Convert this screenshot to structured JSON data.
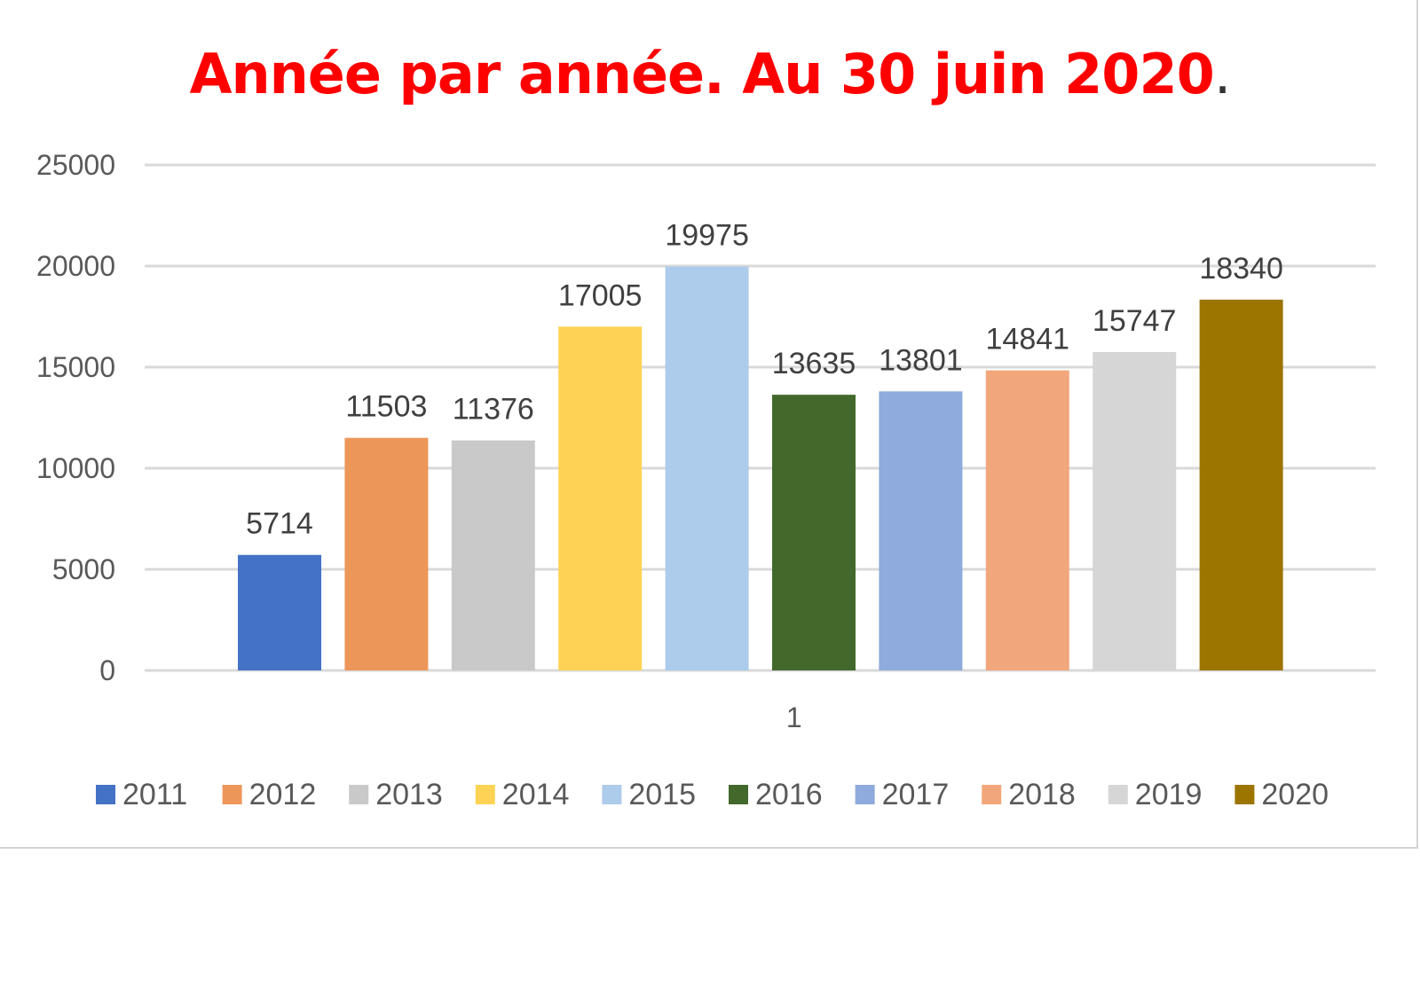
{
  "chart_data": {
    "type": "bar",
    "title": "Année par année. Au 30 juin 2020",
    "title_suffix": ".",
    "categories": [
      "1"
    ],
    "series": [
      {
        "name": "2011",
        "values": [
          5714
        ],
        "color": "#4472c4"
      },
      {
        "name": "2012",
        "values": [
          11503
        ],
        "color": "#ed965a"
      },
      {
        "name": "2013",
        "values": [
          11376
        ],
        "color": "#c9c9c9"
      },
      {
        "name": "2014",
        "values": [
          17005
        ],
        "color": "#fed355"
      },
      {
        "name": "2015",
        "values": [
          19975
        ],
        "color": "#adcbea"
      },
      {
        "name": "2016",
        "values": [
          13635
        ],
        "color": "#43682b"
      },
      {
        "name": "2017",
        "values": [
          13801
        ],
        "color": "#8faadc"
      },
      {
        "name": "2018",
        "values": [
          14841
        ],
        "color": "#f1a77b"
      },
      {
        "name": "2019",
        "values": [
          15747
        ],
        "color": "#d6d6d6"
      },
      {
        "name": "2020",
        "values": [
          18340
        ],
        "color": "#9c7400"
      }
    ],
    "ylim": [
      0,
      25000
    ],
    "yticks": [
      0,
      5000,
      10000,
      15000,
      20000,
      25000
    ],
    "xlabel": "",
    "ylabel": "",
    "grid": true,
    "legend_position": "bottom",
    "data_labels": true
  }
}
